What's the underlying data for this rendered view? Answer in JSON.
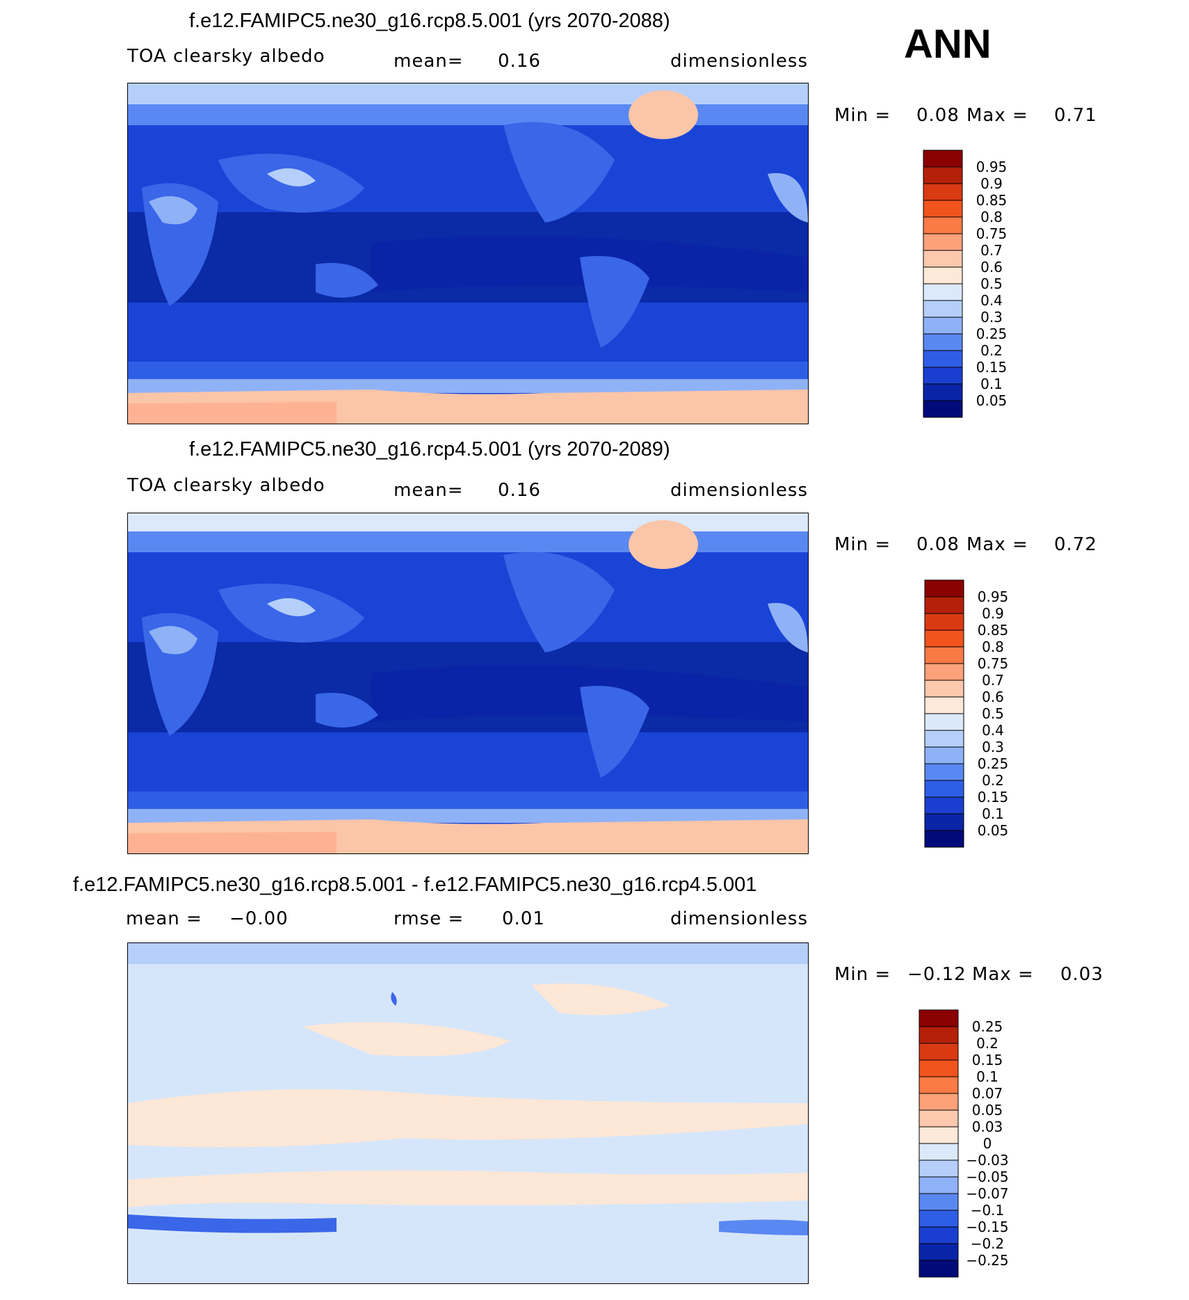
{
  "season": "ANN",
  "panels": [
    {
      "title": "f.e12.FAMIPC5.ne30_g16.rcp8.5.001 (yrs 2070-2088)",
      "left_label": "TOA clearsky albedo",
      "center_label": "mean=",
      "center_value": "0.16",
      "right_label": "dimensionless",
      "min_label": "Min =",
      "min_value": "0.08",
      "max_label": "Max =",
      "max_value": "0.71"
    },
    {
      "title": "f.e12.FAMIPC5.ne30_g16.rcp4.5.001 (yrs 2070-2089)",
      "left_label": "TOA clearsky albedo",
      "center_label": "mean=",
      "center_value": "0.16",
      "right_label": "dimensionless",
      "min_label": "Min =",
      "min_value": "0.08",
      "max_label": "Max =",
      "max_value": "0.72"
    },
    {
      "title": "f.e12.FAMIPC5.ne30_g16.rcp8.5.001 - f.e12.FAMIPC5.ne30_g16.rcp4.5.001",
      "left_label": "mean =",
      "left_value": "−0.00",
      "center_label": "rmse =",
      "center_value": "0.01",
      "right_label": "dimensionless",
      "min_label": "Min =",
      "min_value": "−0.12",
      "max_label": "Max =",
      "max_value": "0.03"
    }
  ],
  "chart_data": [
    {
      "type": "heatmap",
      "title": "f.e12.FAMIPC5.ne30_g16.rcp8.5.001 (yrs 2070-2088)",
      "variable": "TOA clearsky albedo",
      "units": "dimensionless",
      "mean": 0.16,
      "min": 0.08,
      "max": 0.71,
      "colorbar_levels": [
        "0.95",
        "0.9",
        "0.85",
        "0.8",
        "0.75",
        "0.7",
        "0.6",
        "0.5",
        "0.4",
        "0.3",
        "0.25",
        "0.2",
        "0.15",
        "0.1",
        "0.05"
      ]
    },
    {
      "type": "heatmap",
      "title": "f.e12.FAMIPC5.ne30_g16.rcp4.5.001 (yrs 2070-2089)",
      "variable": "TOA clearsky albedo",
      "units": "dimensionless",
      "mean": 0.16,
      "min": 0.08,
      "max": 0.72,
      "colorbar_levels": [
        "0.95",
        "0.9",
        "0.85",
        "0.8",
        "0.75",
        "0.7",
        "0.6",
        "0.5",
        "0.4",
        "0.3",
        "0.25",
        "0.2",
        "0.15",
        "0.1",
        "0.05"
      ]
    },
    {
      "type": "heatmap",
      "title": "f.e12.FAMIPC5.ne30_g16.rcp8.5.001 - f.e12.FAMIPC5.ne30_g16.rcp4.5.001",
      "units": "dimensionless",
      "mean": -0.0,
      "rmse": 0.01,
      "min": -0.12,
      "max": 0.03,
      "colorbar_levels": [
        "0.25",
        "0.2",
        "0.15",
        "0.1",
        "0.07",
        "0.05",
        "0.03",
        "0",
        "−0.03",
        "−0.05",
        "−0.07",
        "−0.1",
        "−0.15",
        "−0.2",
        "−0.25"
      ]
    }
  ],
  "colors": {
    "scale": [
      "#8b0000",
      "#b5200a",
      "#d93a12",
      "#f2541e",
      "#fb7a45",
      "#fca17a",
      "#fdc9ae",
      "#fee8d8",
      "#dbe9fb",
      "#b5cffa",
      "#8fb2f7",
      "#5a88f2",
      "#2f5ee6",
      "#1a3fd0",
      "#0a24a8",
      "#020a7a"
    ],
    "ocean_low": "#0a2aa6",
    "ocean_mid": "#1a44d6",
    "land_blue": "#3a66e8",
    "ice": "#fbc5a8",
    "diff_light_blue": "#d6e6fa",
    "diff_light_red": "#fde7d6"
  }
}
